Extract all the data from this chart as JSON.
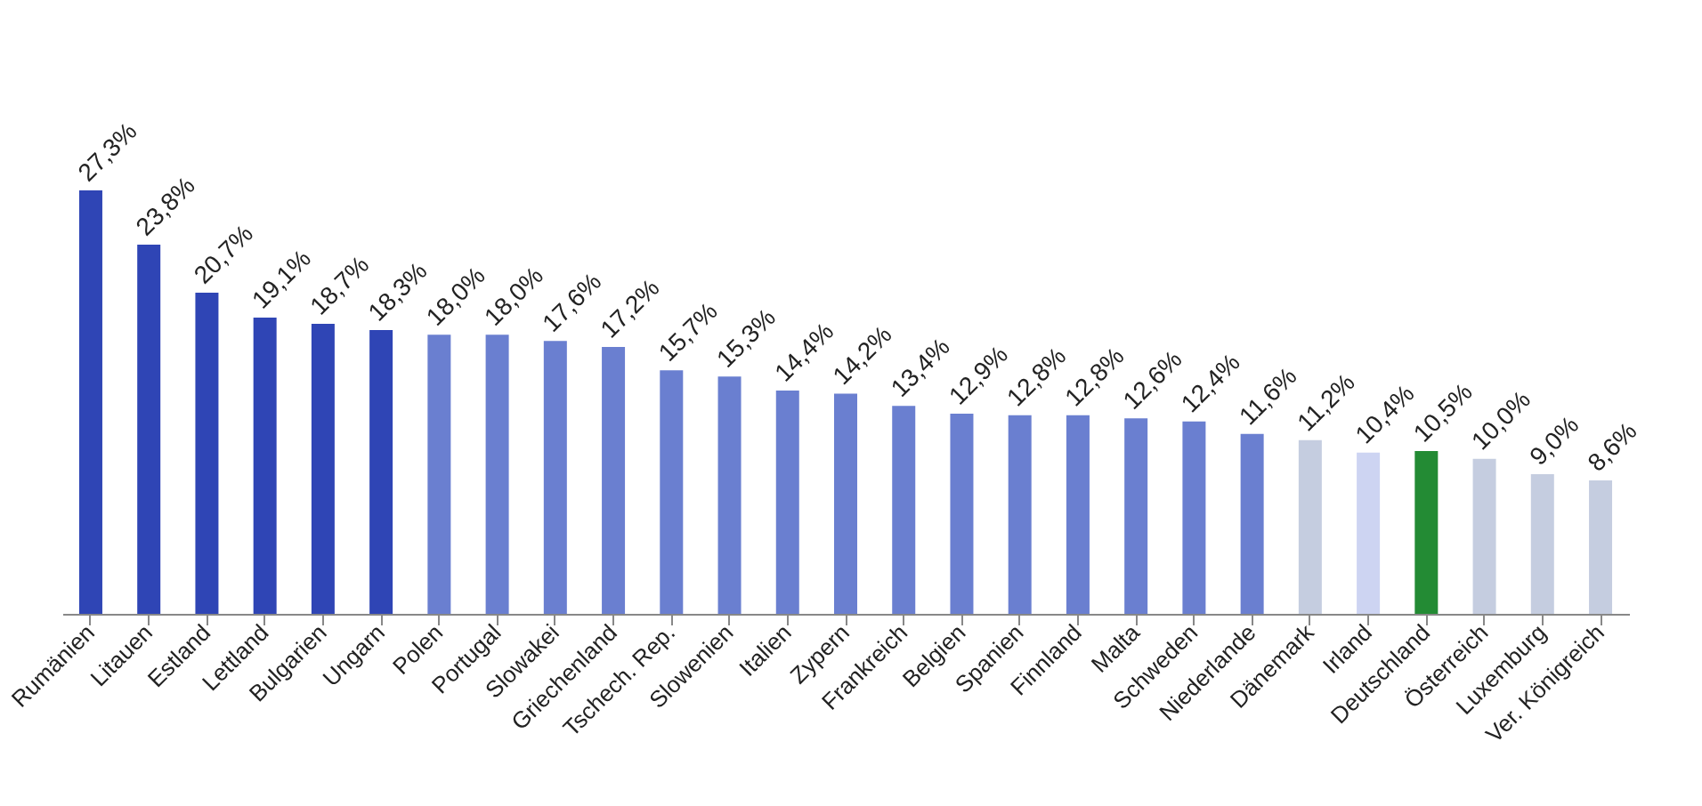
{
  "chart_data": {
    "type": "bar",
    "categories": [
      "Rumänien",
      "Litauen",
      "Estland",
      "Lettland",
      "Bulgarien",
      "Ungarn",
      "Polen",
      "Portugal",
      "Slowakei",
      "Griechenland",
      "Tschech. Rep.",
      "Slowenien",
      "Italien",
      "Zypern",
      "Frankreich",
      "Belgien",
      "Spanien",
      "Finnland",
      "Malta",
      "Schweden",
      "Niederlande",
      "Dänemark",
      "Irland",
      "Deutschland",
      "Österreich",
      "Luxemburg",
      "Ver. Königreich"
    ],
    "values": [
      27.3,
      23.8,
      20.7,
      19.1,
      18.7,
      18.3,
      18.0,
      18.0,
      17.6,
      17.2,
      15.7,
      15.3,
      14.4,
      14.2,
      13.4,
      12.9,
      12.8,
      12.8,
      12.6,
      12.4,
      11.6,
      11.2,
      10.4,
      10.5,
      10.0,
      9.0,
      8.6
    ],
    "colors": [
      "#2f45b5",
      "#2f45b5",
      "#2f45b5",
      "#2f45b5",
      "#2f45b5",
      "#2f45b5",
      "#6a7fd0",
      "#6a7fd0",
      "#6a7fd0",
      "#6a7fd0",
      "#6a7fd0",
      "#6a7fd0",
      "#6a7fd0",
      "#6a7fd0",
      "#6a7fd0",
      "#6a7fd0",
      "#6a7fd0",
      "#6a7fd0",
      "#6a7fd0",
      "#6a7fd0",
      "#6a7fd0",
      "#c5cde0",
      "#cdd4f2",
      "#238b34",
      "#c5cde0",
      "#c5cde0",
      "#c5cde0"
    ],
    "value_labels": [
      "27,3%",
      "23,8%",
      "20,7%",
      "19,1%",
      "18,7%",
      "18,3%",
      "18,0%",
      "18,0%",
      "17,6%",
      "17,2%",
      "15,7%",
      "15,3%",
      "14,4%",
      "14,2%",
      "13,4%",
      "12,9%",
      "12,8%",
      "12,8%",
      "12,6%",
      "12,4%",
      "11,6%",
      "11,2%",
      "10,4%",
      "10,5%",
      "10,0%",
      "9,0%",
      "8,6%"
    ]
  }
}
